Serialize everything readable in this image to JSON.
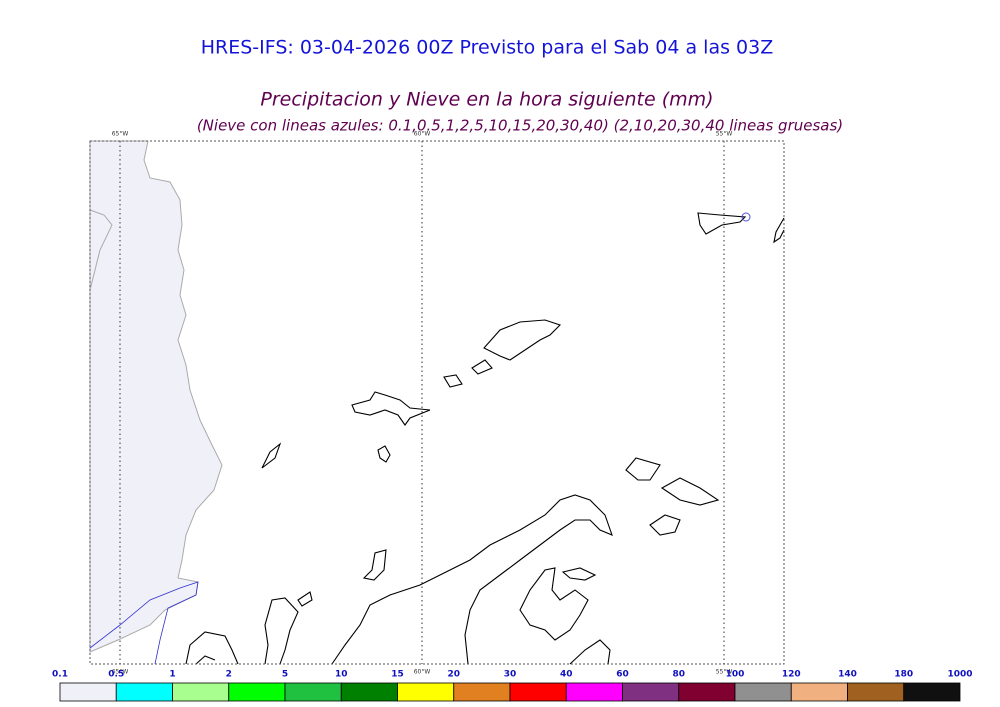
{
  "title": "HRES-IFS: 03-04-2026 00Z Previsto para el Sab 04 a las 03Z",
  "subtitle": "Precipitacion y Nieve en la hora siguiente (mm)",
  "note": "(Nieve con lineas azules: 0.1,0.5,1,2,5,10,15,20,30,40)  (2,10,20,30,40 lineas gruesas)",
  "meridians": [
    "65°W",
    "60°W",
    "55°W"
  ],
  "colorbar": {
    "ticks": [
      0.1,
      0.5,
      1,
      2,
      5,
      10,
      15,
      20,
      30,
      40,
      60,
      80,
      100,
      120,
      140,
      180,
      1000
    ],
    "colors": [
      "#f0f0f8",
      "#00ffff",
      "#a8ff90",
      "#00ff00",
      "#20c040",
      "#008000",
      "#ffff00",
      "#e08020",
      "#ff0000",
      "#ff00ff",
      "#803080",
      "#800030",
      "#909090",
      "#f0b080",
      "#a06020",
      "#101010"
    ]
  }
}
